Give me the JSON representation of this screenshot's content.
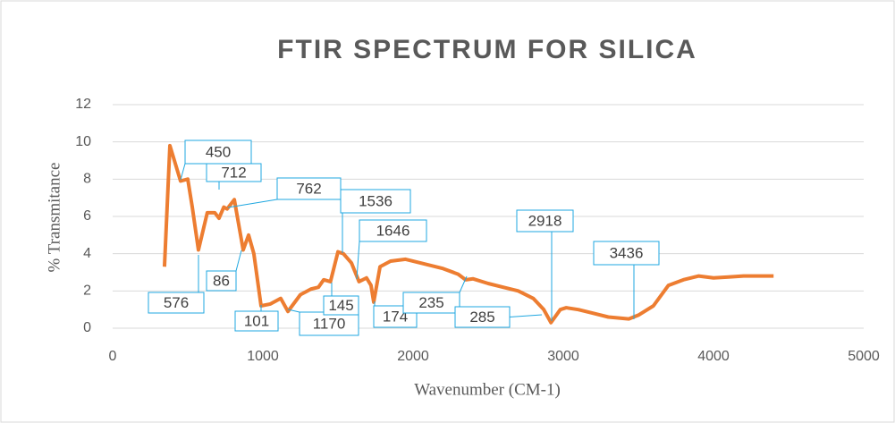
{
  "chart_data": {
    "type": "line",
    "title": "FTIR SPECTRUM FOR SILICA",
    "x_label": "Wavenumber (CM-1)",
    "y_label": "% Transmitance",
    "x": [
      345,
      381,
      452,
      500,
      530,
      571,
      630,
      680,
      708,
      740,
      762,
      810,
      869,
      905,
      940,
      988,
      1050,
      1119,
      1167,
      1250,
      1320,
      1370,
      1405,
      1450,
      1500,
      1536,
      1590,
      1640,
      1690,
      1720,
      1738,
      1780,
      1850,
      1950,
      2050,
      2200,
      2300,
      2350,
      2400,
      2500,
      2600,
      2700,
      2800,
      2870,
      2918,
      2980,
      3020,
      3100,
      3200,
      3300,
      3436,
      3500,
      3600,
      3700,
      3800,
      3900,
      4000,
      4100,
      4200,
      4300,
      4400
    ],
    "values": [
      3.3,
      9.8,
      7.9,
      8.0,
      6.5,
      4.2,
      6.2,
      6.2,
      5.9,
      6.5,
      6.4,
      6.9,
      4.2,
      5.0,
      4.0,
      1.2,
      1.3,
      1.6,
      0.9,
      1.8,
      2.1,
      2.2,
      2.6,
      2.5,
      4.1,
      4.0,
      3.5,
      2.5,
      2.7,
      2.3,
      1.4,
      3.3,
      3.6,
      3.7,
      3.5,
      3.2,
      2.9,
      2.6,
      2.65,
      2.4,
      2.2,
      2.0,
      1.6,
      1.0,
      0.3,
      1.0,
      1.1,
      1.0,
      0.8,
      0.6,
      0.5,
      0.7,
      1.2,
      2.3,
      2.6,
      2.8,
      2.7,
      2.75,
      2.8,
      2.8,
      2.8
    ],
    "color": "#ed7d31",
    "xlim": [
      0,
      5000
    ],
    "xticks": [
      0,
      1000,
      2000,
      3000,
      4000,
      5000
    ],
    "ylim": [
      0,
      12
    ],
    "yticks": [
      0,
      2,
      4,
      6,
      8,
      10,
      12
    ],
    "grid": true,
    "annotations": [
      "450",
      "712",
      "762",
      "1536",
      "1646",
      "2918",
      "3436",
      "576",
      "86",
      "101",
      "1170",
      "145",
      "174",
      "235",
      "285"
    ]
  }
}
